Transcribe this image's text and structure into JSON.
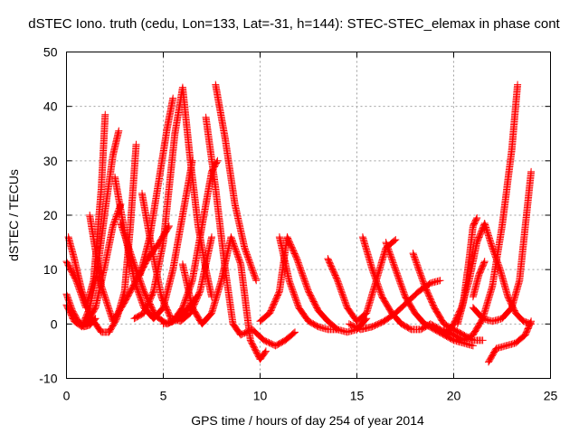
{
  "chart_data": {
    "type": "scatter",
    "title": "dSTEC Iono. truth (cedu, Lon=133, Lat=-31, h=144): STEC-STEC_elemax in phase cont",
    "xlabel": "GPS time / hours of day 254 of year 2014",
    "ylabel": "dSTEC  / TECUs",
    "xlim": [
      0,
      25
    ],
    "ylim": [
      -10,
      50
    ],
    "xticks": [
      "0",
      "5",
      "10",
      "15",
      "20",
      "25"
    ],
    "yticks": [
      "-10",
      "0",
      "10",
      "20",
      "30",
      "40",
      "50"
    ],
    "grid": true,
    "marker": "plus",
    "color": "#ff0000",
    "series": [
      {
        "x": [
          0.0,
          0.3,
          0.6,
          0.9,
          1.2,
          1.5
        ],
        "y": [
          5.5,
          2.5,
          0.5,
          -0.5,
          -0.2,
          1.0
        ]
      },
      {
        "x": [
          0.0,
          0.5,
          1.0,
          1.4,
          1.8,
          2.0
        ],
        "y": [
          11.5,
          8.0,
          3.0,
          8.0,
          25.0,
          38.5
        ]
      },
      {
        "x": [
          0.1,
          0.4,
          0.8,
          1.3,
          1.8,
          2.2,
          2.6,
          3.0,
          3.3,
          3.6
        ],
        "y": [
          16.0,
          12.0,
          6.0,
          1.0,
          -1.5,
          -1.5,
          1.0,
          6.0,
          18.0,
          33.0
        ]
      },
      {
        "x": [
          0.0,
          0.4,
          0.8,
          1.2,
          1.6,
          2.0,
          2.4,
          2.7
        ],
        "y": [
          3.5,
          0.5,
          -0.5,
          3.0,
          10.0,
          21.0,
          31.0,
          35.5
        ]
      },
      {
        "x": [
          1.2,
          1.8,
          2.4,
          3.0,
          3.6,
          4.2,
          4.8,
          5.3
        ],
        "y": [
          20.0,
          7.0,
          0.5,
          4.0,
          8.0,
          12.0,
          15.0,
          18.0
        ]
      },
      {
        "x": [
          1.0,
          1.5,
          2.0,
          2.4,
          2.8
        ],
        "y": [
          0.0,
          3.0,
          11.0,
          18.0,
          22.0
        ]
      },
      {
        "x": [
          2.5,
          3.0,
          3.5,
          4.0,
          4.5,
          5.0,
          5.5,
          6.0,
          6.5
        ],
        "y": [
          27.0,
          17.0,
          8.0,
          3.0,
          1.0,
          3.0,
          10.0,
          20.0,
          30.0
        ]
      },
      {
        "x": [
          2.8,
          3.4,
          4.0,
          4.6,
          5.2,
          5.8,
          6.3,
          6.7
        ],
        "y": [
          18.5,
          12.0,
          6.0,
          1.5,
          0.0,
          1.0,
          3.0,
          5.0
        ]
      },
      {
        "x": [
          3.5,
          4.0,
          4.5,
          5.0,
          5.3,
          5.6,
          6.0,
          6.4,
          6.8,
          7.2,
          7.5
        ],
        "y": [
          1.0,
          2.0,
          6.0,
          15.0,
          25.0,
          35.0,
          43.5,
          30.0,
          18.0,
          10.0,
          5.0
        ]
      },
      {
        "x": [
          3.8,
          4.3,
          4.8,
          5.2,
          5.5
        ],
        "y": [
          9.0,
          16.0,
          27.0,
          36.0,
          41.5
        ]
      },
      {
        "x": [
          3.9,
          4.4,
          4.9,
          5.4,
          5.9,
          6.4,
          6.9,
          7.5
        ],
        "y": [
          24.0,
          14.0,
          5.0,
          1.0,
          0.5,
          2.0,
          6.0,
          16.0
        ]
      },
      {
        "x": [
          5.0,
          5.5,
          6.0,
          6.5,
          7.0,
          7.5,
          7.8
        ],
        "y": [
          0.0,
          0.5,
          3.0,
          8.0,
          18.0,
          28.0,
          30.0
        ]
      },
      {
        "x": [
          6.0,
          6.5,
          7.0,
          7.5,
          8.0,
          8.5,
          9.0,
          9.5,
          10.0,
          10.3
        ],
        "y": [
          11.0,
          3.0,
          0.0,
          2.0,
          8.0,
          16.0,
          11.0,
          -3.0,
          -6.5,
          -5.0
        ]
      },
      {
        "x": [
          7.2,
          7.7,
          8.2,
          8.6,
          9.0,
          9.6,
          10.2,
          10.8,
          11.3,
          11.8
        ],
        "y": [
          38.0,
          25.0,
          10.0,
          0.0,
          -2.0,
          -1.0,
          -3.0,
          -4.0,
          -3.0,
          -1.5
        ]
      },
      {
        "x": [
          7.7,
          8.2,
          8.7,
          9.2,
          9.8
        ],
        "y": [
          44.0,
          34.0,
          22.0,
          14.0,
          8.0
        ]
      },
      {
        "x": [
          10.0,
          10.5,
          11.0,
          11.4,
          11.9,
          12.5,
          13.0,
          13.5,
          14.0,
          14.5,
          15.0,
          15.5
        ],
        "y": [
          0.5,
          2.0,
          6.0,
          16.0,
          12.0,
          6.0,
          2.5,
          0.5,
          -1.0,
          -1.5,
          -1.0,
          1.0
        ]
      },
      {
        "x": [
          11.0,
          11.5,
          12.0,
          12.5,
          13.0,
          13.5,
          14.0
        ],
        "y": [
          16.0,
          8.0,
          3.0,
          0.5,
          -0.5,
          -1.0,
          -1.0
        ]
      },
      {
        "x": [
          13.5,
          14.0,
          14.5,
          15.0,
          15.5,
          16.0,
          16.5,
          17.0
        ],
        "y": [
          12.0,
          8.0,
          3.0,
          0.5,
          2.0,
          8.0,
          14.0,
          15.5
        ]
      },
      {
        "x": [
          15.3,
          15.8,
          16.3,
          16.8,
          17.3,
          17.8,
          18.3,
          18.8,
          19.3,
          19.8
        ],
        "y": [
          16.0,
          10.0,
          5.0,
          2.0,
          0.0,
          -1.0,
          -1.0,
          0.0,
          -1.0,
          -2.0
        ]
      },
      {
        "x": [
          14.6,
          15.2,
          15.8,
          16.4,
          17.0,
          17.6,
          18.2,
          18.8,
          19.3
        ],
        "y": [
          0.0,
          -1.0,
          -0.5,
          0.5,
          2.0,
          4.0,
          6.0,
          7.5,
          8.0
        ]
      },
      {
        "x": [
          16.5,
          17.0,
          17.5,
          18.0,
          18.5,
          19.0,
          19.5,
          20.0,
          20.5,
          21.0
        ],
        "y": [
          15.0,
          10.0,
          5.0,
          2.0,
          0.0,
          -1.0,
          -2.0,
          -3.0,
          -3.5,
          -4.0
        ]
      },
      {
        "x": [
          17.9,
          18.5,
          19.0,
          19.5,
          20.0,
          20.5,
          21.0,
          21.5
        ],
        "y": [
          13.0,
          7.0,
          3.0,
          0.0,
          -1.0,
          -2.0,
          -3.0,
          -3.0
        ]
      },
      {
        "x": [
          19.6,
          20.0,
          20.4,
          20.8,
          21.2,
          21.6,
          22.0,
          22.4,
          22.8,
          23.2,
          23.6,
          24.0
        ],
        "y": [
          -2.0,
          0.0,
          3.0,
          8.0,
          15.0,
          18.5,
          14.0,
          10.0,
          5.0,
          2.0,
          0.5,
          0.0
        ]
      },
      {
        "x": [
          20.2,
          20.5,
          20.8,
          21.0,
          21.2
        ],
        "y": [
          0.0,
          4.0,
          12.0,
          18.0,
          19.5
        ]
      },
      {
        "x": [
          21.0,
          21.5,
          22.0,
          22.5,
          23.0,
          23.4,
          23.7,
          24.0
        ],
        "y": [
          3.0,
          1.0,
          0.5,
          1.0,
          3.0,
          8.0,
          18.0,
          28.0
        ]
      },
      {
        "x": [
          21.8,
          22.2,
          22.7,
          23.2,
          23.7,
          24.0
        ],
        "y": [
          -7.0,
          -4.5,
          -4.0,
          -3.5,
          -2.0,
          0.5
        ]
      },
      {
        "x": [
          19.5,
          20.0,
          20.5,
          21.0,
          21.5,
          22.0,
          22.5,
          23.0,
          23.3
        ],
        "y": [
          -1.0,
          -2.0,
          -3.0,
          -2.0,
          1.0,
          7.0,
          18.0,
          32.0,
          44.0
        ]
      },
      {
        "x": [
          21.0,
          21.3,
          21.6
        ],
        "y": [
          5.0,
          9.0,
          11.5
        ]
      }
    ]
  }
}
